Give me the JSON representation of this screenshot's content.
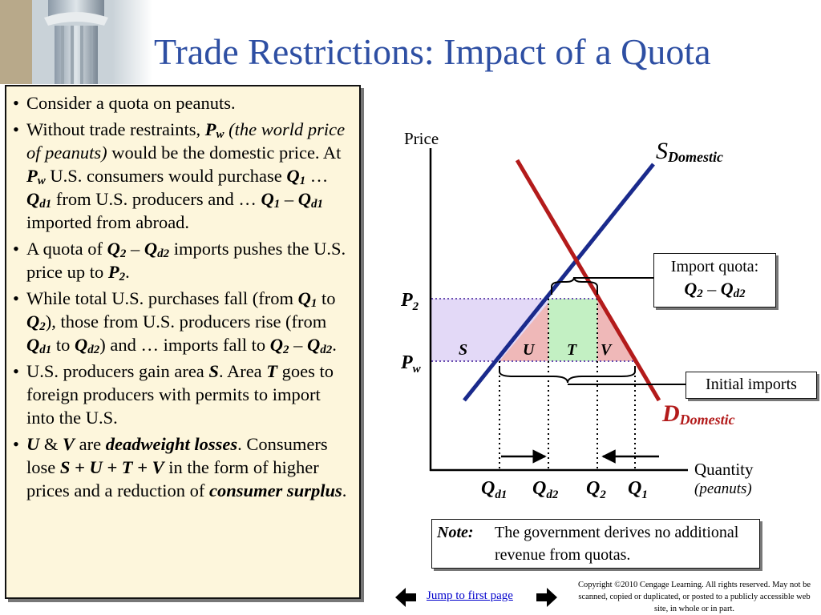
{
  "title": "Trade Restrictions: Impact of a Quota",
  "bullets": {
    "b1": "Consider a quota on peanuts.",
    "b2_a": "Without trade restraints,",
    "b2_pw": "P",
    "b2_pw_sub": "w",
    "b2_paren": "(the world price of peanuts)",
    "b2_b": "would be the domestic price. At",
    "b2_pw2": "P",
    "b2_pw2_sub": "w",
    "b2_c": "U.S. consumers would purchase",
    "b2_q1": "Q",
    "b2_q1_sub": "1",
    "b2_d": "…",
    "b2_qd1": "Q",
    "b2_qd1_sub": "d1",
    "b2_e": "from U.S. producers and …",
    "b2_q1b": "Q",
    "b2_q1b_sub": "1",
    "b2_minus": "–",
    "b2_qd1b": "Q",
    "b2_qd1b_sub": "d1",
    "b2_f": "imported from abroad.",
    "b3_a": "A quota of",
    "b3_q2": "Q",
    "b3_q2_sub": "2",
    "b3_minus": "–",
    "b3_qd2": "Q",
    "b3_qd2_sub": "d2",
    "b3_b": "imports pushes the U.S. price up to",
    "b3_p2": "P",
    "b3_p2_sub": "2",
    "b3_c": ".",
    "b4_a": "While total U.S. purchases fall (from",
    "b4_q1": "Q",
    "b4_q1_sub": "1",
    "b4_to": "to",
    "b4_q2": "Q",
    "b4_q2_sub": "2",
    "b4_b": "), those from U.S. producers rise (from",
    "b4_qd1": "Q",
    "b4_qd1_sub": "d1",
    "b4_to2": "to",
    "b4_qd2": "Q",
    "b4_qd2_sub": "d2",
    "b4_c": ") and … imports fall to",
    "b4_q2b": "Q",
    "b4_q2b_sub": "2",
    "b4_minus": "–",
    "b4_qd2b": "Q",
    "b4_qd2b_sub": "d2",
    "b4_d": ".",
    "b5_a": "U.S. producers gain area",
    "b5_s": "S",
    "b5_b": ".  Area",
    "b5_t": "T",
    "b5_c": "goes to foreign producers with permits to import into the U.S.",
    "b6_u": "U",
    "b6_amp": "&",
    "b6_v": "V",
    "b6_are": "are",
    "b6_dw": "deadweight losses",
    "b6_a": ". Consumers lose",
    "b6_sutv": "S + U + T + V",
    "b6_b": "in the form of higher prices and a reduction of",
    "b6_cs": "consumer surplus",
    "b6_c": "."
  },
  "chart": {
    "y_axis_label": "Price",
    "x_axis_label": "Quantity",
    "x_axis_sublabel": "(peanuts)",
    "supply_label": "S",
    "supply_sub": "Domestic",
    "demand_label": "D",
    "demand_sub": "Domestic",
    "p2_label": "P",
    "p2_sub": "2",
    "pw_label": "P",
    "pw_sub": "w",
    "area_s": "S",
    "area_u": "U",
    "area_t": "T",
    "area_v": "V",
    "q_labels": [
      {
        "main": "Q",
        "sub": "d1"
      },
      {
        "main": "Q",
        "sub": "d2"
      },
      {
        "main": "Q",
        "sub": "2"
      },
      {
        "main": "Q",
        "sub": "1"
      }
    ],
    "colors": {
      "supply": "#1a2a8c",
      "demand": "#b31b1b",
      "area_s": "#e3d9f7",
      "area_u_v": "#efb8b8",
      "area_t": "#c3f0c3",
      "guide_lines": "#6a4fb0",
      "title": "#2e4fa3",
      "panel_bg": "#fdf6dc"
    }
  },
  "callouts": {
    "import_quota_title": "Import quota:",
    "import_quota_q2": "Q",
    "import_quota_q2_sub": "2",
    "import_quota_minus": "–",
    "import_quota_qd2": "Q",
    "import_quota_qd2_sub": "d2",
    "initial_imports": "Initial imports",
    "note_label": "Note:",
    "note_text": "The government derives no additional revenue from quotas."
  },
  "footer": {
    "jump_link": "Jump to first page",
    "copyright": "Copyright ©2010 Cengage Learning. All rights reserved. May not be scanned, copied or duplicated, or posted to a publicly accessible web site, in whole or in part."
  }
}
